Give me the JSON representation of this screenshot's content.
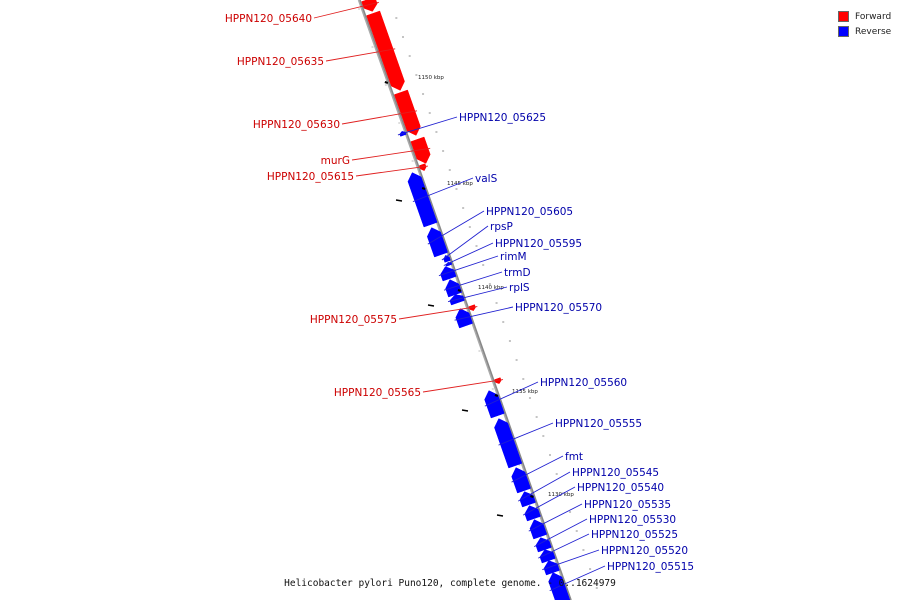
{
  "colors": {
    "forward": "#ff0000",
    "reverse": "#0000ff",
    "forward_label": "#cc0000",
    "reverse_label": "#0000aa",
    "backbone": "#888888"
  },
  "legend": [
    {
      "label": "Forward",
      "color": "#ff0000"
    },
    {
      "label": "Reverse",
      "color": "#0000ff"
    }
  ],
  "caption": "Helicobacter pylori Puno120, complete genome. - 0..1624979",
  "scale_labels": [
    "1150 kbp",
    "1145 kbp",
    "1140 kbp",
    "1135 kbp",
    "1130 kbp"
  ],
  "genes": [
    {
      "label": "HPPN120_05640",
      "strand": "forward"
    },
    {
      "label": "HPPN120_05635",
      "strand": "forward"
    },
    {
      "label": "HPPN120_05630",
      "strand": "forward"
    },
    {
      "label": "murG",
      "strand": "forward"
    },
    {
      "label": "HPPN120_05615",
      "strand": "forward"
    },
    {
      "label": "HPPN120_05575",
      "strand": "forward"
    },
    {
      "label": "HPPN120_05565",
      "strand": "forward"
    },
    {
      "label": "HPPN120_05625",
      "strand": "reverse"
    },
    {
      "label": "valS",
      "strand": "reverse"
    },
    {
      "label": "HPPN120_05605",
      "strand": "reverse"
    },
    {
      "label": "rpsP",
      "strand": "reverse"
    },
    {
      "label": "HPPN120_05595",
      "strand": "reverse"
    },
    {
      "label": "rimM",
      "strand": "reverse"
    },
    {
      "label": "trmD",
      "strand": "reverse"
    },
    {
      "label": "rplS",
      "strand": "reverse"
    },
    {
      "label": "HPPN120_05570",
      "strand": "reverse"
    },
    {
      "label": "HPPN120_05560",
      "strand": "reverse"
    },
    {
      "label": "HPPN120_05555",
      "strand": "reverse"
    },
    {
      "label": "fmt",
      "strand": "reverse"
    },
    {
      "label": "HPPN120_05545",
      "strand": "reverse"
    },
    {
      "label": "HPPN120_05540",
      "strand": "reverse"
    },
    {
      "label": "HPPN120_05535",
      "strand": "reverse"
    },
    {
      "label": "HPPN120_05530",
      "strand": "reverse"
    },
    {
      "label": "HPPN120_05525",
      "strand": "reverse"
    },
    {
      "label": "HPPN120_05520",
      "strand": "reverse"
    },
    {
      "label": "HPPN120_05515",
      "strand": "reverse"
    }
  ]
}
